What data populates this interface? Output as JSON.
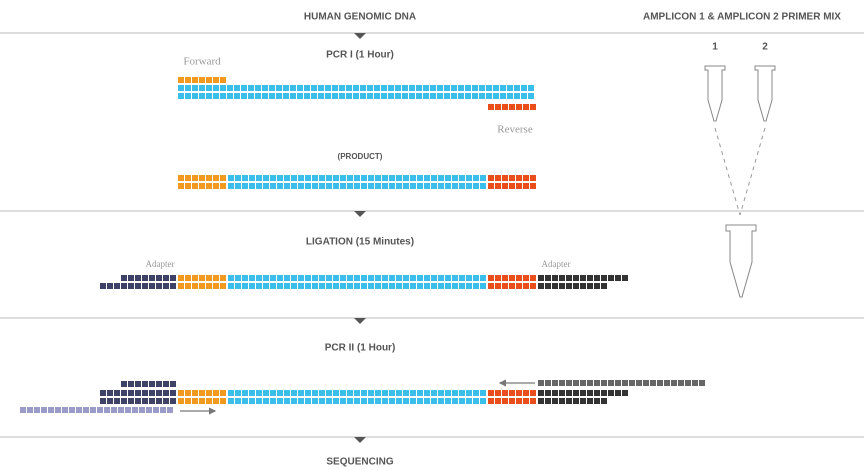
{
  "header": {
    "left": "HUMAN GENOMIC DNA",
    "right": "AMPLICON 1 & AMPLICON 2 PRIMER MIX"
  },
  "tubes": [
    "1",
    "2"
  ],
  "steps": [
    {
      "title": "PCR I (1 Hour)",
      "forward": "Forward",
      "reverse": "Reverse",
      "product": "(PRODUCT)"
    },
    {
      "title": "LIGATION (15 Minutes)",
      "adapter_left": "Adapter",
      "adapter_right": "Adapter"
    },
    {
      "title": "PCR II (1 Hour)"
    },
    {
      "title": "SEQUENCING"
    }
  ]
}
